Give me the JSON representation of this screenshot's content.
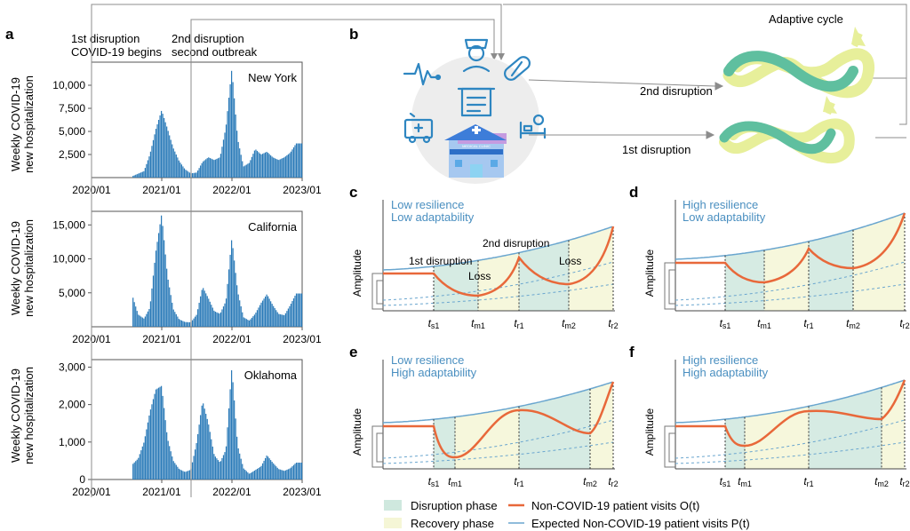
{
  "colors": {
    "bar": "#2a7ab8",
    "teal": "#5fb8a0",
    "yellow": "#e5ec8f",
    "orange": "#e8683a",
    "expected": "#6aa6cf",
    "green_zone": "#cfe8de",
    "yellow_zone": "#f5f6d6",
    "text_blue": "#4a8fc0",
    "grey": "#999999"
  },
  "panel_a": {
    "label": "a",
    "annotations": {
      "d1_line1": "1st disruption",
      "d1_line2": "COVID-19 begins",
      "d2_line1": "2nd disruption",
      "d2_line2": "second outbreak"
    },
    "ylabel_line1": "Weekly COVID-19",
    "ylabel_line2": "new hospitalization",
    "x_ticks": [
      "2020/01",
      "2021/01",
      "2022/01",
      "2023/01"
    ]
  },
  "panel_b": {
    "label": "b",
    "cycle_title": "Adaptive cycle",
    "arrow_2nd": "2nd disruption",
    "arrow_1st": "1st disruption",
    "icons": [
      "heart-rate-icon",
      "nurse-icon",
      "pill-icon",
      "ambulance-icon",
      "prescription-icon",
      "hospital-bed-icon",
      "hospital-building-icon"
    ],
    "building_sign": "MEDICAL CLINIC"
  },
  "panels_cdef": [
    {
      "label": "c",
      "line1": "Low resilience",
      "line2": "Low adaptability",
      "annotations": [
        "1st disruption",
        "Loss",
        "2nd disruption",
        "Loss"
      ]
    },
    {
      "label": "d",
      "line1": "High resilience",
      "line2": "Low adaptability",
      "annotations": []
    },
    {
      "label": "e",
      "line1": "Low resilience",
      "line2": "High adaptability",
      "annotations": []
    },
    {
      "label": "f",
      "line1": "High resilience",
      "line2": "High adaptability",
      "annotations": []
    }
  ],
  "amplitude_label": "Amplitude",
  "phase_ticks": [
    "t_s1",
    "t_m1",
    "t_r1",
    "t_m2",
    "t_r2"
  ],
  "legend": {
    "disruption": "Disruption phase",
    "recovery": "Recovery phase",
    "observed": "Non-COVID-19 patient visits O(t)",
    "expected": "Expected Non-COVID-19 patient visits P(t)"
  },
  "chart_data": [
    {
      "type": "bar",
      "title": "New York",
      "xlabel": "",
      "ylabel": "Weekly COVID-19 new hospitalization",
      "x_ticks": [
        "2020/01",
        "2021/01",
        "2022/01",
        "2023/01"
      ],
      "y_ticks": [
        2500,
        5000,
        7500,
        10000
      ],
      "ylim": [
        0,
        12500
      ],
      "data_start": "2020/08",
      "data_end": "2022/12",
      "keypoints": [
        [
          "2020/08",
          150
        ],
        [
          "2020/10",
          700
        ],
        [
          "2020/11",
          2500
        ],
        [
          "2020/12",
          5200
        ],
        [
          "2021/01",
          7300
        ],
        [
          "2021/02",
          5300
        ],
        [
          "2021/03",
          3200
        ],
        [
          "2021/04",
          1800
        ],
        [
          "2021/05",
          900
        ],
        [
          "2021/06",
          450
        ],
        [
          "2021/07",
          550
        ],
        [
          "2021/08",
          1700
        ],
        [
          "2021/09",
          2200
        ],
        [
          "2021/10",
          1900
        ],
        [
          "2021/11",
          2200
        ],
        [
          "2021/12",
          5500
        ],
        [
          "2022/01",
          11800
        ],
        [
          "2022/02",
          4200
        ],
        [
          "2022/03",
          1200
        ],
        [
          "2022/04",
          1600
        ],
        [
          "2022/05",
          3100
        ],
        [
          "2022/06",
          2500
        ],
        [
          "2022/07",
          2800
        ],
        [
          "2022/08",
          2200
        ],
        [
          "2022/09",
          1900
        ],
        [
          "2022/10",
          2200
        ],
        [
          "2022/11",
          2700
        ],
        [
          "2022/12",
          3700
        ]
      ]
    },
    {
      "type": "bar",
      "title": "California",
      "xlabel": "",
      "ylabel": "Weekly COVID-19 new hospitalization",
      "x_ticks": [
        "2020/01",
        "2021/01",
        "2022/01",
        "2023/01"
      ],
      "y_ticks": [
        5000,
        10000,
        15000
      ],
      "ylim": [
        0,
        17000
      ],
      "data_start": "2020/08",
      "data_end": "2022/12",
      "keypoints": [
        [
          "2020/08",
          4600
        ],
        [
          "2020/09",
          1800
        ],
        [
          "2020/10",
          1200
        ],
        [
          "2020/11",
          2800
        ],
        [
          "2020/12",
          11000
        ],
        [
          "2021/01",
          16600
        ],
        [
          "2021/02",
          7500
        ],
        [
          "2021/03",
          2600
        ],
        [
          "2021/04",
          1100
        ],
        [
          "2021/05",
          700
        ],
        [
          "2021/06",
          650
        ],
        [
          "2021/07",
          1800
        ],
        [
          "2021/08",
          5900
        ],
        [
          "2021/09",
          4200
        ],
        [
          "2021/10",
          2300
        ],
        [
          "2021/11",
          1900
        ],
        [
          "2021/12",
          3800
        ],
        [
          "2022/01",
          13100
        ],
        [
          "2022/02",
          5200
        ],
        [
          "2022/03",
          1400
        ],
        [
          "2022/04",
          900
        ],
        [
          "2022/05",
          1900
        ],
        [
          "2022/06",
          3500
        ],
        [
          "2022/07",
          4800
        ],
        [
          "2022/08",
          3200
        ],
        [
          "2022/09",
          1900
        ],
        [
          "2022/10",
          1700
        ],
        [
          "2022/11",
          3200
        ],
        [
          "2022/12",
          4900
        ]
      ]
    },
    {
      "type": "bar",
      "title": "Oklahoma",
      "xlabel": "",
      "ylabel": "Weekly COVID-19 new hospitalization",
      "x_ticks": [
        "2020/01",
        "2021/01",
        "2022/01",
        "2023/01"
      ],
      "y_ticks": [
        0,
        1000,
        2000,
        3000
      ],
      "ylim": [
        0,
        3200
      ],
      "data_start": "2020/08",
      "data_end": "2022/12",
      "keypoints": [
        [
          "2020/08",
          400
        ],
        [
          "2020/09",
          560
        ],
        [
          "2020/10",
          1000
        ],
        [
          "2020/11",
          1800
        ],
        [
          "2020/12",
          2400
        ],
        [
          "2021/01",
          2500
        ],
        [
          "2021/02",
          1100
        ],
        [
          "2021/03",
          500
        ],
        [
          "2021/04",
          280
        ],
        [
          "2021/05",
          200
        ],
        [
          "2021/06",
          260
        ],
        [
          "2021/07",
          1000
        ],
        [
          "2021/08",
          2100
        ],
        [
          "2021/09",
          1500
        ],
        [
          "2021/10",
          650
        ],
        [
          "2021/11",
          450
        ],
        [
          "2021/12",
          800
        ],
        [
          "2022/01",
          3000
        ],
        [
          "2022/02",
          900
        ],
        [
          "2022/03",
          300
        ],
        [
          "2022/04",
          150
        ],
        [
          "2022/05",
          250
        ],
        [
          "2022/06",
          350
        ],
        [
          "2022/07",
          650
        ],
        [
          "2022/08",
          450
        ],
        [
          "2022/09",
          280
        ],
        [
          "2022/10",
          230
        ],
        [
          "2022/11",
          300
        ],
        [
          "2022/12",
          450
        ]
      ]
    }
  ]
}
